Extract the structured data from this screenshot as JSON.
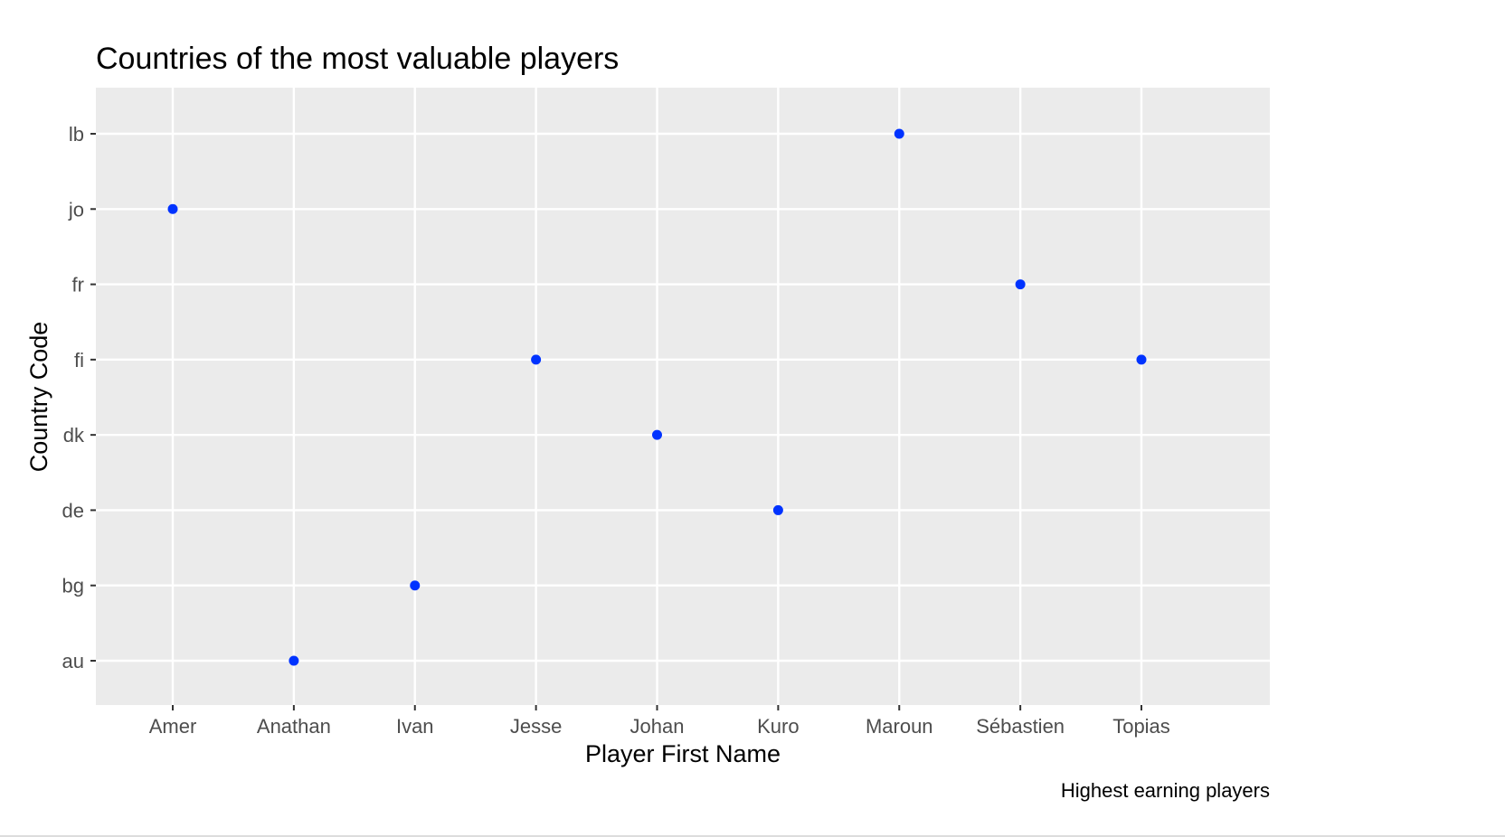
{
  "chart_data": {
    "type": "scatter",
    "title": "Countries of the most valuable players",
    "xlabel": "Player First Name",
    "ylabel": "Country Code",
    "caption": "Highest earning players",
    "x_categories": [
      "Amer",
      "Anathan",
      "Ivan",
      "Jesse",
      "Johan",
      "Kuro",
      "Maroun",
      "Sébastien",
      "Topias"
    ],
    "y_categories": [
      "au",
      "bg",
      "de",
      "dk",
      "fi",
      "fr",
      "jo",
      "lb"
    ],
    "points": [
      {
        "x": "Amer",
        "y": "jo"
      },
      {
        "x": "Anathan",
        "y": "au"
      },
      {
        "x": "Ivan",
        "y": "bg"
      },
      {
        "x": "Jesse",
        "y": "fi"
      },
      {
        "x": "Johan",
        "y": "dk"
      },
      {
        "x": "Kuro",
        "y": "de"
      },
      {
        "x": "Maroun",
        "y": "lb"
      },
      {
        "x": "Sébastien",
        "y": "fr"
      },
      {
        "x": "Topias",
        "y": "fi"
      }
    ],
    "point_color": "#0033ff",
    "panel_background": "#ebebeb",
    "grid": true,
    "legend": "none"
  }
}
